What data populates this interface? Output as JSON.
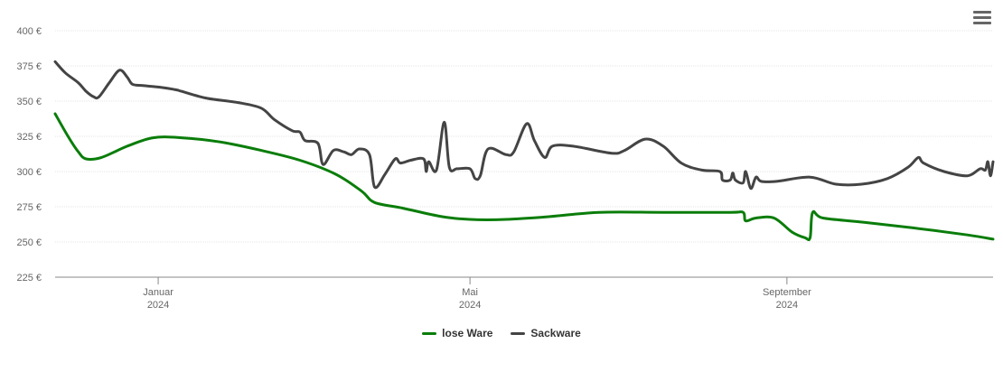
{
  "chart_data": {
    "type": "line",
    "y_unit": "€",
    "ylim": [
      225,
      400
    ],
    "y_ticks": [
      225,
      250,
      275,
      300,
      325,
      350,
      375,
      400
    ],
    "y_tick_labels": [
      "225 €",
      "250 €",
      "275 €",
      "300 €",
      "325 €",
      "350 €",
      "375 €",
      "400 €"
    ],
    "xlim": [
      "2023-11-22",
      "2024-11-20"
    ],
    "x_ticks": [
      {
        "date": "2024-01-01",
        "label": "Januar",
        "year": "2024"
      },
      {
        "date": "2024-05-01",
        "label": "Mai",
        "year": "2024"
      },
      {
        "date": "2024-09-01",
        "label": "September",
        "year": "2024"
      }
    ],
    "grid": true,
    "legend_position": "bottom",
    "series": [
      {
        "name": "lose Ware",
        "color": "#0a7d0a",
        "points": [
          [
            "2023-11-22",
            341
          ],
          [
            "2023-11-27",
            325
          ],
          [
            "2023-12-01",
            314
          ],
          [
            "2023-12-04",
            309
          ],
          [
            "2023-12-10",
            310
          ],
          [
            "2023-12-20",
            318
          ],
          [
            "2023-12-30",
            324
          ],
          [
            "2024-01-10",
            324
          ],
          [
            "2024-01-25",
            321
          ],
          [
            "2024-02-10",
            315
          ],
          [
            "2024-02-25",
            308
          ],
          [
            "2024-03-10",
            298
          ],
          [
            "2024-03-20",
            286
          ],
          [
            "2024-03-25",
            278
          ],
          [
            "2024-04-05",
            274
          ],
          [
            "2024-04-20",
            268
          ],
          [
            "2024-05-01",
            266
          ],
          [
            "2024-05-15",
            266
          ],
          [
            "2024-06-01",
            268
          ],
          [
            "2024-06-20",
            271
          ],
          [
            "2024-07-15",
            271
          ],
          [
            "2024-08-10",
            271
          ],
          [
            "2024-08-15",
            271
          ],
          [
            "2024-08-16",
            265
          ],
          [
            "2024-08-20",
            267
          ],
          [
            "2024-08-27",
            267
          ],
          [
            "2024-09-03",
            257
          ],
          [
            "2024-09-08",
            253
          ],
          [
            "2024-09-10",
            253
          ],
          [
            "2024-09-11",
            271
          ],
          [
            "2024-09-15",
            267
          ],
          [
            "2024-10-01",
            264
          ],
          [
            "2024-10-20",
            260
          ],
          [
            "2024-11-10",
            255
          ],
          [
            "2024-11-20",
            252
          ]
        ]
      },
      {
        "name": "Sackware",
        "color": "#444444",
        "points": [
          [
            "2023-11-22",
            378
          ],
          [
            "2023-11-26",
            370
          ],
          [
            "2023-12-01",
            363
          ],
          [
            "2023-12-04",
            357
          ],
          [
            "2023-12-07",
            353
          ],
          [
            "2023-12-09",
            353
          ],
          [
            "2023-12-13",
            363
          ],
          [
            "2023-12-17",
            372
          ],
          [
            "2023-12-20",
            367
          ],
          [
            "2023-12-22",
            362
          ],
          [
            "2023-12-26",
            361
          ],
          [
            "2024-01-01",
            360
          ],
          [
            "2024-01-08",
            358
          ],
          [
            "2024-01-10",
            357
          ],
          [
            "2024-01-20",
            352
          ],
          [
            "2024-02-01",
            349
          ],
          [
            "2024-02-10",
            345
          ],
          [
            "2024-02-15",
            337
          ],
          [
            "2024-02-22",
            329
          ],
          [
            "2024-02-25",
            328
          ],
          [
            "2024-02-27",
            322
          ],
          [
            "2024-03-03",
            320
          ],
          [
            "2024-03-05",
            305
          ],
          [
            "2024-03-09",
            315
          ],
          [
            "2024-03-13",
            314
          ],
          [
            "2024-03-16",
            312
          ],
          [
            "2024-03-19",
            316
          ],
          [
            "2024-03-23",
            312
          ],
          [
            "2024-03-25",
            289
          ],
          [
            "2024-03-29",
            298
          ],
          [
            "2024-04-02",
            309
          ],
          [
            "2024-04-04",
            306
          ],
          [
            "2024-04-08",
            308
          ],
          [
            "2024-04-13",
            309
          ],
          [
            "2024-04-14",
            300
          ],
          [
            "2024-04-15",
            307
          ],
          [
            "2024-04-18",
            301
          ],
          [
            "2024-04-21",
            335
          ],
          [
            "2024-04-23",
            303
          ],
          [
            "2024-04-26",
            302
          ],
          [
            "2024-05-01",
            302
          ],
          [
            "2024-05-03",
            295
          ],
          [
            "2024-05-05",
            297
          ],
          [
            "2024-05-08",
            316
          ],
          [
            "2024-05-15",
            312
          ],
          [
            "2024-05-18",
            314
          ],
          [
            "2024-05-23",
            334
          ],
          [
            "2024-05-26",
            322
          ],
          [
            "2024-05-30",
            310
          ],
          [
            "2024-06-02",
            318
          ],
          [
            "2024-06-10",
            318
          ],
          [
            "2024-06-25",
            313
          ],
          [
            "2024-06-30",
            315
          ],
          [
            "2024-07-08",
            323
          ],
          [
            "2024-07-15",
            318
          ],
          [
            "2024-07-22",
            306
          ],
          [
            "2024-07-30",
            301
          ],
          [
            "2024-08-06",
            300
          ],
          [
            "2024-08-07",
            294
          ],
          [
            "2024-08-10",
            294
          ],
          [
            "2024-08-11",
            299
          ],
          [
            "2024-08-12",
            294
          ],
          [
            "2024-08-15",
            292
          ],
          [
            "2024-08-16",
            300
          ],
          [
            "2024-08-18",
            288
          ],
          [
            "2024-08-20",
            296
          ],
          [
            "2024-08-22",
            293
          ],
          [
            "2024-08-28",
            293
          ],
          [
            "2024-09-10",
            296
          ],
          [
            "2024-09-20",
            291
          ],
          [
            "2024-09-30",
            291
          ],
          [
            "2024-10-10",
            295
          ],
          [
            "2024-10-18",
            303
          ],
          [
            "2024-10-22",
            310
          ],
          [
            "2024-10-24",
            306
          ],
          [
            "2024-11-01",
            300
          ],
          [
            "2024-11-10",
            297
          ],
          [
            "2024-11-15",
            302
          ],
          [
            "2024-11-17",
            301
          ],
          [
            "2024-11-18",
            307
          ],
          [
            "2024-11-19",
            297
          ],
          [
            "2024-11-20",
            307
          ]
        ]
      }
    ]
  },
  "menu": {
    "icon": "hamburger-menu-icon"
  }
}
